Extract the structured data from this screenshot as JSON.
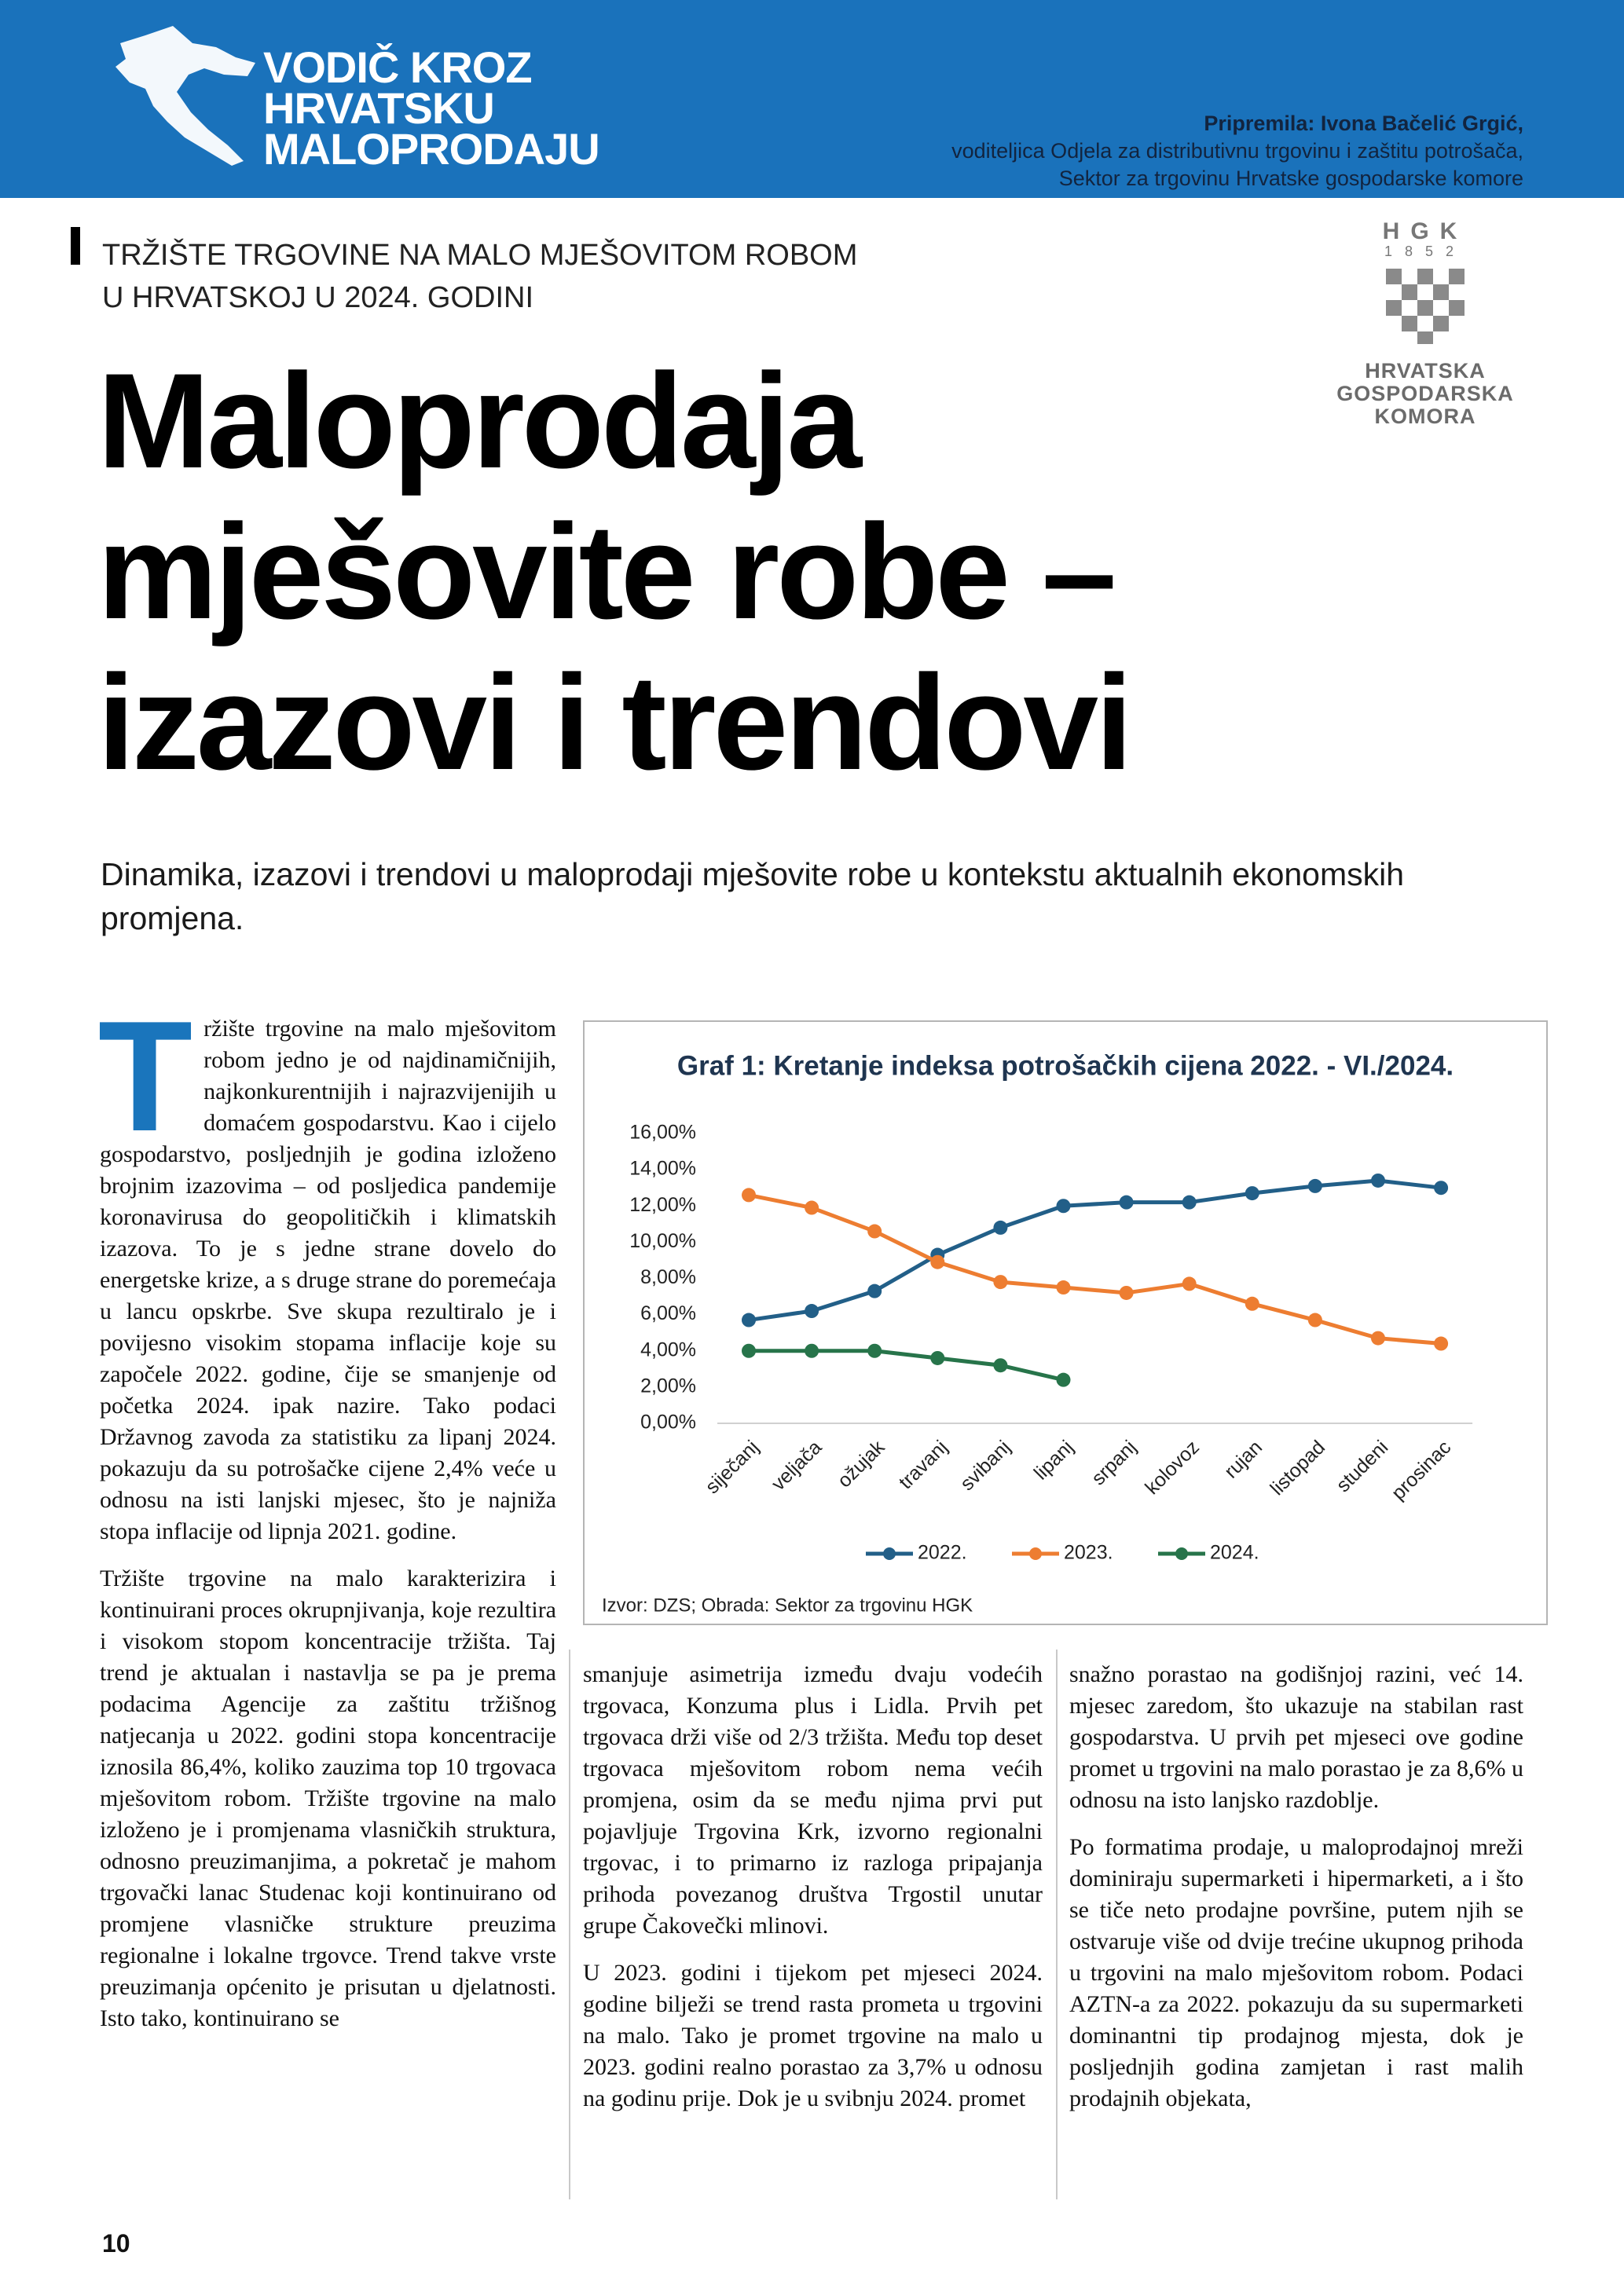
{
  "header": {
    "series_title": [
      "VODIČ KROZ",
      "HRVATSKU",
      "MALOPRODAJU"
    ],
    "author": "Pripremila: Ivona Bačelić Grgić,",
    "author_role": [
      "voditeljica Odjela za distributivnu trgovinu i zaštitu potrošača,",
      "Sektor za trgovinu Hrvatske gospodarske komore"
    ]
  },
  "logo": {
    "letters": "HGK",
    "year": "1852",
    "name": [
      "HRVATSKA",
      "GOSPODARSKA",
      "KOMORA"
    ]
  },
  "kicker": [
    "TRŽIŠTE TRGOVINE NA MALO MJEŠOVITOM ROBOM",
    "U HRVATSKOJ U 2024. GODINI"
  ],
  "title": [
    "Maloprodaja",
    "mješovite robe –",
    "izazovi i trendovi"
  ],
  "lead": "Dinamika, izazovi i trendovi u maloprodaji mješovite robe u kontekstu aktualnih ekonomskih promjena.",
  "body": {
    "drop_cap": "T",
    "columns": [
      [
        "ržište trgovine na malo mješovitom robom jedno je od najdinamičnijih, najkonkurentnijih i najrazvijenijih u domaćem gospodarstvu. Kao i cijelo gospodarstvo, posljednjih je godina izloženo brojnim izazovima – od posljedica pandemije koronavirusa do geopolitičkih i klimatskih izazova. To je s jedne strane dovelo do energetske krize, a s druge strane do poremećaja u lancu opskrbe. Sve skupa rezultiralo je i povijesno visokim stopama inflacije koje su započele 2022. godine, čije se smanjenje od početka 2024. ipak nazire. Tako podaci Državnog zavoda za statistiku za lipanj 2024. pokazuju da su potrošačke cijene 2,4% veće u odnosu na isti lanjski mjesec, što je najniža stopa inflacije od lipnja 2021. godine.",
        "Tržište trgovine na malo karakterizira i kontinuirani proces okrupnjivanja, koje rezultira i visokom stopom koncentracije tržišta. Taj trend je aktualan i nastavlja se pa je prema podacima Agencije za zaštitu tržišnog natjecanja u 2022. godini stopa koncentracije iznosila 86,4%, koliko zauzima top 10 trgovaca mješovitom robom. Tržište trgovine na malo izloženo je i promjenama vlasničkih struktura, odnosno preuzimanjima, a pokretač je mahom trgovački lanac Studenac koji kontinuirano od promjene vlasničke strukture preuzima regionalne i lokalne trgovce. Trend takve vrste preuzimanja općenito je prisutan u djelatnosti. Isto tako, kontinuirano se"
      ],
      [
        "smanjuje asimetrija između dvaju vodećih trgovaca, Konzuma plus i Lidla. Prvih pet trgovaca drži više od 2/3 tržišta. Među top deset trgovaca mješovitom robom nema većih promjena, osim da se među njima prvi put pojavljuje Trgovina Krk, izvorno regionalni trgovac, i to primarno iz razloga pripajanja prihoda povezanog društva Trgostil unutar grupe Čakovečki mlinovi.",
        "U 2023. godini i tijekom pet mjeseci 2024. godine bilježi se trend rasta prometa u trgovini na malo. Tako je promet trgovine na malo u 2023. godini realno porastao za 3,7% u odnosu na godinu prije. Dok je u svibnju 2024. promet"
      ],
      [
        "snažno porastao na godišnjoj razini, već 14. mjesec zaredom, što ukazuje na stabilan rast gospodarstva. U prvih pet mjeseci ove godine promet u trgovini na malo porastao je za 8,6% u odnosu na isto lanjsko razdoblje.",
        "Po formatima prodaje, u maloprodajnoj mreži dominiraju supermarketi i hipermarketi, a i što se tiče neto prodajne površine, putem njih se ostvaruje više od dvije trećine ukupnog prihoda u trgovini na malo mješovitom robom. Podaci AZTN-a za 2022. pokazuju da su supermarketi dominantni tip prodajnog mjesta, dok je posljednjih godina zamjetan i rast malih prodajnih objekata,"
      ]
    ]
  },
  "chart_data": {
    "type": "line",
    "title": "Graf 1: Kretanje indeksa potrošačkih cijena 2022. - VI./2024.",
    "source": "Izvor: DZS; Obrada: Sektor za trgovinu HGK",
    "categories": [
      "siječanj",
      "veljača",
      "ožujak",
      "travanj",
      "svibanj",
      "lipanj",
      "srpanj",
      "kolovoz",
      "rujan",
      "listopad",
      "studeni",
      "prosinac"
    ],
    "series": [
      {
        "name": "2022.",
        "color": "#225f88",
        "values": [
          5.7,
          6.2,
          7.3,
          9.3,
          10.8,
          12.0,
          12.2,
          12.2,
          12.7,
          13.1,
          13.4,
          13.0
        ]
      },
      {
        "name": "2023.",
        "color": "#ed7d31",
        "values": [
          12.6,
          11.9,
          10.6,
          8.9,
          7.8,
          7.5,
          7.2,
          7.7,
          6.6,
          5.7,
          4.7,
          4.4
        ]
      },
      {
        "name": "2024.",
        "color": "#27744a",
        "values": [
          4.0,
          4.0,
          4.0,
          3.6,
          3.2,
          2.4,
          null,
          null,
          null,
          null,
          null,
          null
        ]
      }
    ],
    "ylim": [
      0,
      16
    ],
    "yticks": [
      {
        "value": 0,
        "label": "0,00%"
      },
      {
        "value": 2,
        "label": "2,00%"
      },
      {
        "value": 4,
        "label": "4,00%"
      },
      {
        "value": 6,
        "label": "6,00%"
      },
      {
        "value": 8,
        "label": "8,00%"
      },
      {
        "value": 10,
        "label": "10,00%"
      },
      {
        "value": 12,
        "label": "12,00%"
      },
      {
        "value": 14,
        "label": "14,00%"
      },
      {
        "value": 16,
        "label": "16,00%"
      }
    ],
    "grid": false,
    "legend": "bottom"
  },
  "page_number": "10"
}
